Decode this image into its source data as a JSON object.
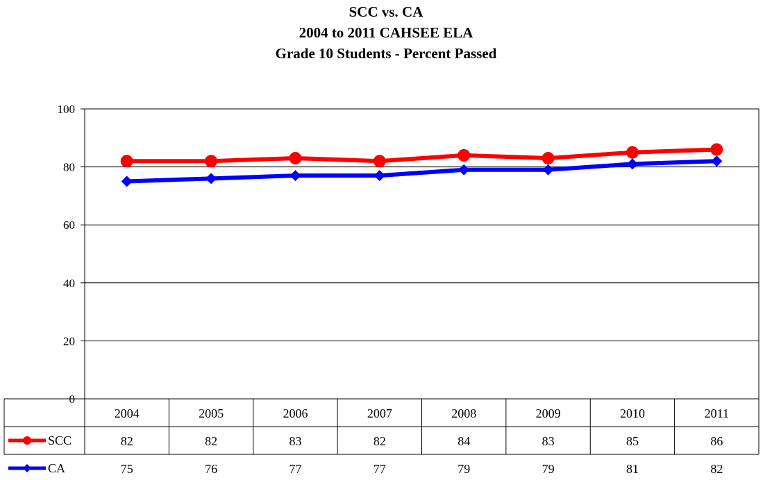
{
  "chart_data": {
    "type": "line",
    "title_lines": [
      "SCC vs. CA",
      "2004 to 2011 CAHSEE ELA",
      "Grade 10 Students - Percent Passed"
    ],
    "categories": [
      "2004",
      "2005",
      "2006",
      "2007",
      "2008",
      "2009",
      "2010",
      "2011"
    ],
    "series": [
      {
        "name": "SCC",
        "values": [
          82,
          82,
          83,
          82,
          84,
          83,
          85,
          86
        ],
        "color": "#ff0000",
        "marker": "circle"
      },
      {
        "name": "CA",
        "values": [
          75,
          76,
          77,
          77,
          79,
          79,
          81,
          82
        ],
        "color": "#0000ff",
        "marker": "diamond"
      }
    ],
    "y_ticks": [
      "0",
      "20",
      "40",
      "60",
      "80",
      "100"
    ],
    "ylim": [
      0,
      100
    ],
    "grid": true,
    "legend": "data-table"
  }
}
